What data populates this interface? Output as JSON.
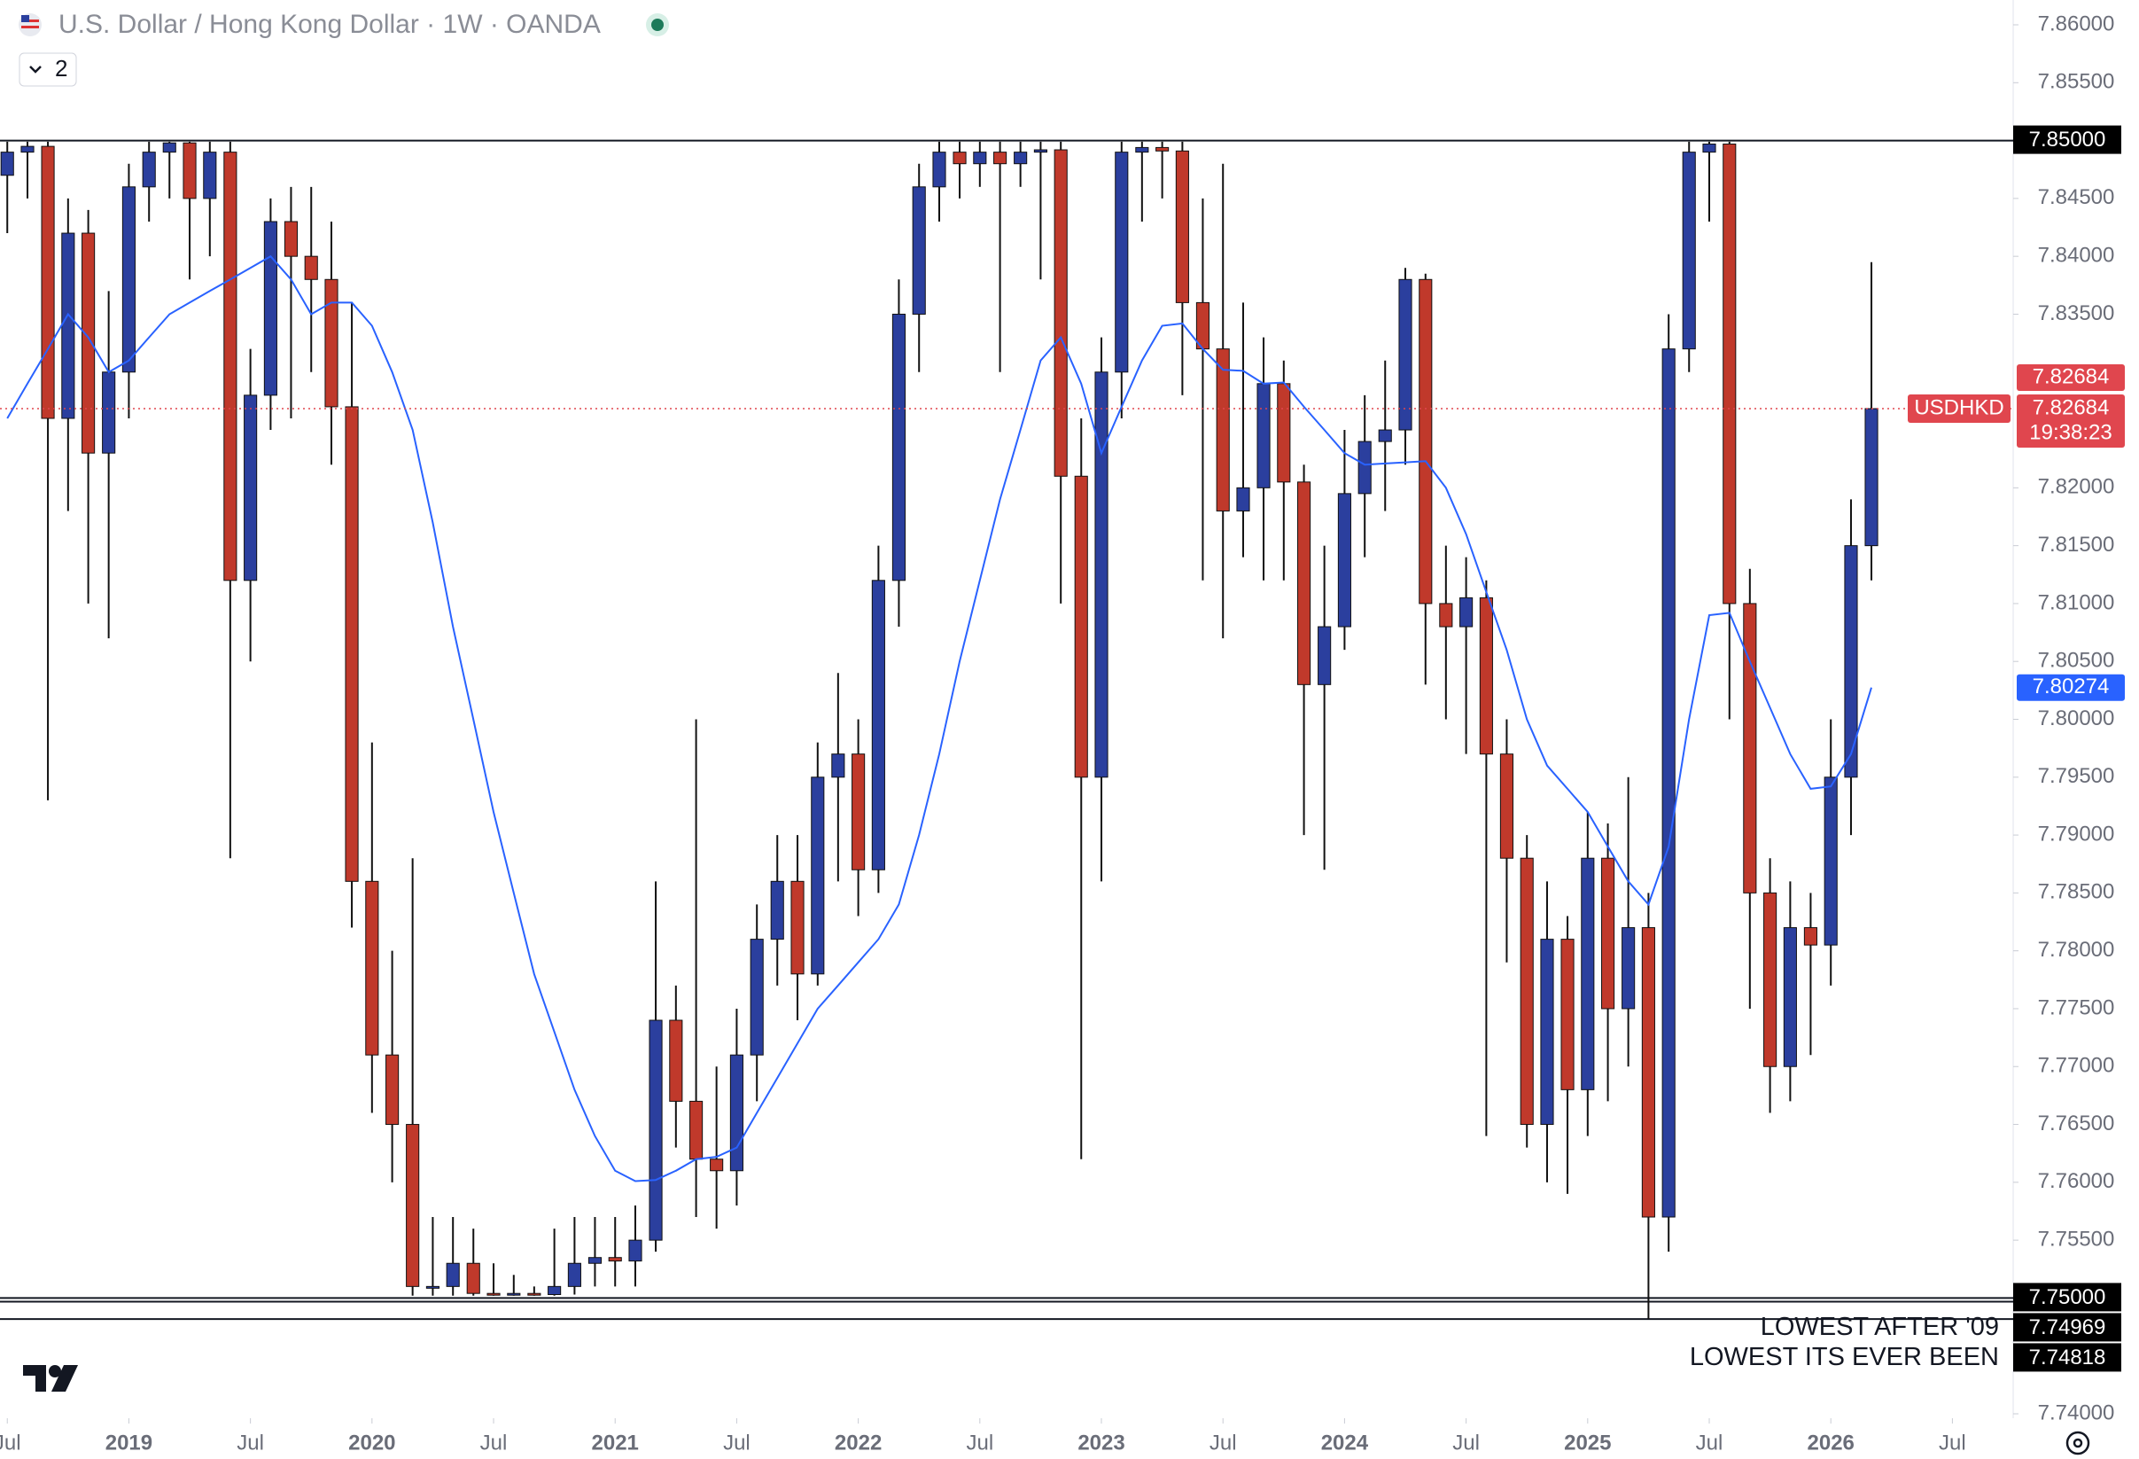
{
  "header": {
    "collapsed_count": 2
  },
  "chart_data": {
    "type": "candlestick",
    "title": "U.S. Dollar / Hong Kong Dollar · 1W · OANDA",
    "symbol": "USDHKD",
    "countdown": "19:38:23",
    "up_color": "#2b3f9e",
    "down_color": "#c0392b",
    "wick_color": "#111111",
    "ma_color": "#2962ff",
    "last_color": "#e0464e",
    "xlim": [
      2018.47,
      2026.75
    ],
    "xticks": [
      {
        "value": 2018.5,
        "label": "Jul"
      },
      {
        "value": 2019,
        "label": "2019"
      },
      {
        "value": 2019.5,
        "label": "Jul"
      },
      {
        "value": 2020,
        "label": "2020"
      },
      {
        "value": 2020.5,
        "label": "Jul"
      },
      {
        "value": 2021,
        "label": "2021"
      },
      {
        "value": 2021.5,
        "label": "Jul"
      },
      {
        "value": 2022,
        "label": "2022"
      },
      {
        "value": 2022.5,
        "label": "Jul"
      },
      {
        "value": 2023,
        "label": "2023"
      },
      {
        "value": 2023.5,
        "label": "Jul"
      },
      {
        "value": 2024,
        "label": "2024"
      },
      {
        "value": 2024.5,
        "label": "Jul"
      },
      {
        "value": 2025,
        "label": "2025"
      },
      {
        "value": 2025.5,
        "label": "Jul"
      },
      {
        "value": 2026,
        "label": "2026"
      },
      {
        "value": 2026.5,
        "label": "Jul"
      }
    ],
    "ylim": [
      7.74,
      7.86
    ],
    "yticks": [
      {
        "value": 7.86,
        "label": "7.86000"
      },
      {
        "value": 7.855,
        "label": "7.85500"
      },
      {
        "value": 7.845,
        "label": "7.84500"
      },
      {
        "value": 7.84,
        "label": "7.84000"
      },
      {
        "value": 7.835,
        "label": "7.83500"
      },
      {
        "value": 7.82,
        "label": "7.82000"
      },
      {
        "value": 7.815,
        "label": "7.81500"
      },
      {
        "value": 7.81,
        "label": "7.81000"
      },
      {
        "value": 7.805,
        "label": "7.80500"
      },
      {
        "value": 7.8,
        "label": "7.80000"
      },
      {
        "value": 7.795,
        "label": "7.79500"
      },
      {
        "value": 7.79,
        "label": "7.79000"
      },
      {
        "value": 7.785,
        "label": "7.78500"
      },
      {
        "value": 7.78,
        "label": "7.78000"
      },
      {
        "value": 7.775,
        "label": "7.77500"
      },
      {
        "value": 7.77,
        "label": "7.77000"
      },
      {
        "value": 7.765,
        "label": "7.76500"
      },
      {
        "value": 7.76,
        "label": "7.76000"
      },
      {
        "value": 7.755,
        "label": "7.75500"
      },
      {
        "value": 7.74,
        "label": "7.74000"
      }
    ],
    "hlines": [
      {
        "value": 7.85,
        "label": "7.85000"
      },
      {
        "value": 7.75,
        "label": "7.75000"
      },
      {
        "value": 7.74969,
        "label": "7.74969",
        "note": "LOWEST AFTER '09"
      },
      {
        "value": 7.74818,
        "label": "7.74818",
        "note": "LOWEST ITS EVER BEEN"
      }
    ],
    "x": [
      2018.5,
      2018.583,
      2018.667,
      2018.75,
      2018.833,
      2018.917,
      2019,
      2019.083,
      2019.167,
      2019.25,
      2019.333,
      2019.417,
      2019.5,
      2019.583,
      2019.667,
      2019.75,
      2019.833,
      2019.917,
      2020,
      2020.083,
      2020.167,
      2020.25,
      2020.333,
      2020.417,
      2020.5,
      2020.583,
      2020.667,
      2020.75,
      2020.833,
      2020.917,
      2021,
      2021.083,
      2021.167,
      2021.25,
      2021.333,
      2021.417,
      2021.5,
      2021.583,
      2021.667,
      2021.75,
      2021.833,
      2021.917,
      2022,
      2022.083,
      2022.167,
      2022.25,
      2022.333,
      2022.417,
      2022.5,
      2022.583,
      2022.667,
      2022.75,
      2022.833,
      2022.917,
      2023,
      2023.083,
      2023.167,
      2023.25,
      2023.333,
      2023.417,
      2023.5,
      2023.583,
      2023.667,
      2023.75,
      2023.833,
      2023.917,
      2024,
      2024.083,
      2024.167,
      2024.25,
      2024.333,
      2024.417,
      2024.5,
      2024.583,
      2024.667,
      2024.75,
      2024.833,
      2024.917,
      2025,
      2025.083,
      2025.167,
      2025.25,
      2025.333,
      2025.417,
      2025.5,
      2025.583,
      2025.667,
      2025.75,
      2025.833,
      2025.917,
      2026,
      2026.083,
      2026.167
    ],
    "series": [
      {
        "name": "USDHKD",
        "values": [
          [
            7.847,
            7.8499,
            7.842,
            7.849
          ],
          [
            7.849,
            7.8499,
            7.845,
            7.8495
          ],
          [
            7.8495,
            7.8499,
            7.793,
            7.826
          ],
          [
            7.826,
            7.845,
            7.818,
            7.842
          ],
          [
            7.842,
            7.844,
            7.81,
            7.823
          ],
          [
            7.823,
            7.837,
            7.807,
            7.83
          ],
          [
            7.83,
            7.848,
            7.826,
            7.846
          ],
          [
            7.846,
            7.8499,
            7.843,
            7.849
          ],
          [
            7.849,
            7.8499,
            7.845,
            7.8498
          ],
          [
            7.8498,
            7.8499,
            7.838,
            7.845
          ],
          [
            7.845,
            7.8499,
            7.84,
            7.849
          ],
          [
            7.849,
            7.8499,
            7.788,
            7.812
          ],
          [
            7.812,
            7.832,
            7.805,
            7.828
          ],
          [
            7.828,
            7.845,
            7.825,
            7.843
          ],
          [
            7.843,
            7.846,
            7.826,
            7.84
          ],
          [
            7.84,
            7.846,
            7.83,
            7.838
          ],
          [
            7.838,
            7.843,
            7.822,
            7.827
          ],
          [
            7.827,
            7.836,
            7.782,
            7.786
          ],
          [
            7.786,
            7.798,
            7.766,
            7.771
          ],
          [
            7.771,
            7.78,
            7.76,
            7.765
          ],
          [
            7.765,
            7.788,
            7.7502,
            7.751
          ],
          [
            7.751,
            7.757,
            7.7502,
            7.751
          ],
          [
            7.751,
            7.757,
            7.7502,
            7.753
          ],
          [
            7.753,
            7.756,
            7.7502,
            7.7504
          ],
          [
            7.7504,
            7.753,
            7.7502,
            7.7503
          ],
          [
            7.7503,
            7.752,
            7.7502,
            7.7504
          ],
          [
            7.7504,
            7.751,
            7.7502,
            7.7503
          ],
          [
            7.7503,
            7.756,
            7.7502,
            7.751
          ],
          [
            7.751,
            7.757,
            7.7503,
            7.753
          ],
          [
            7.753,
            7.757,
            7.751,
            7.7535
          ],
          [
            7.7535,
            7.757,
            7.751,
            7.7532
          ],
          [
            7.7532,
            7.758,
            7.751,
            7.755
          ],
          [
            7.755,
            7.786,
            7.754,
            7.774
          ],
          [
            7.774,
            7.777,
            7.763,
            7.767
          ],
          [
            7.767,
            7.8,
            7.757,
            7.762
          ],
          [
            7.762,
            7.77,
            7.756,
            7.761
          ],
          [
            7.761,
            7.775,
            7.758,
            7.771
          ],
          [
            7.771,
            7.784,
            7.767,
            7.781
          ],
          [
            7.781,
            7.79,
            7.777,
            7.786
          ],
          [
            7.786,
            7.79,
            7.774,
            7.778
          ],
          [
            7.778,
            7.798,
            7.777,
            7.795
          ],
          [
            7.795,
            7.804,
            7.786,
            7.797
          ],
          [
            7.797,
            7.8,
            7.783,
            7.787
          ],
          [
            7.787,
            7.815,
            7.785,
            7.812
          ],
          [
            7.812,
            7.838,
            7.808,
            7.835
          ],
          [
            7.835,
            7.848,
            7.83,
            7.846
          ],
          [
            7.846,
            7.8499,
            7.843,
            7.849
          ],
          [
            7.849,
            7.8499,
            7.845,
            7.848
          ],
          [
            7.848,
            7.8499,
            7.846,
            7.849
          ],
          [
            7.849,
            7.8499,
            7.83,
            7.848
          ],
          [
            7.848,
            7.8499,
            7.846,
            7.849
          ],
          [
            7.849,
            7.8499,
            7.838,
            7.8492
          ],
          [
            7.8492,
            7.8499,
            7.81,
            7.821
          ],
          [
            7.821,
            7.826,
            7.762,
            7.795
          ],
          [
            7.795,
            7.833,
            7.786,
            7.83
          ],
          [
            7.83,
            7.8499,
            7.826,
            7.849
          ],
          [
            7.849,
            7.8499,
            7.843,
            7.8494
          ],
          [
            7.8494,
            7.8499,
            7.845,
            7.8491
          ],
          [
            7.8491,
            7.8499,
            7.828,
            7.836
          ],
          [
            7.836,
            7.845,
            7.812,
            7.832
          ],
          [
            7.832,
            7.848,
            7.807,
            7.818
          ],
          [
            7.818,
            7.836,
            7.814,
            7.82
          ],
          [
            7.82,
            7.833,
            7.812,
            7.829
          ],
          [
            7.829,
            7.831,
            7.812,
            7.8205
          ],
          [
            7.8205,
            7.822,
            7.79,
            7.803
          ],
          [
            7.803,
            7.815,
            7.787,
            7.808
          ],
          [
            7.808,
            7.825,
            7.806,
            7.8195
          ],
          [
            7.8195,
            7.828,
            7.814,
            7.824
          ],
          [
            7.824,
            7.831,
            7.818,
            7.825
          ],
          [
            7.825,
            7.839,
            7.822,
            7.838
          ],
          [
            7.838,
            7.8385,
            7.803,
            7.81
          ],
          [
            7.81,
            7.815,
            7.8,
            7.808
          ],
          [
            7.808,
            7.814,
            7.797,
            7.8105
          ],
          [
            7.8105,
            7.812,
            7.764,
            7.797
          ],
          [
            7.797,
            7.8,
            7.779,
            7.788
          ],
          [
            7.788,
            7.79,
            7.763,
            7.765
          ],
          [
            7.765,
            7.786,
            7.76,
            7.781
          ],
          [
            7.781,
            7.783,
            7.759,
            7.768
          ],
          [
            7.768,
            7.792,
            7.764,
            7.788
          ],
          [
            7.788,
            7.791,
            7.767,
            7.775
          ],
          [
            7.775,
            7.795,
            7.77,
            7.782
          ],
          [
            7.782,
            7.785,
            7.74818,
            7.757
          ],
          [
            7.757,
            7.835,
            7.754,
            7.832
          ],
          [
            7.832,
            7.8499,
            7.83,
            7.849
          ],
          [
            7.849,
            7.8499,
            7.843,
            7.8497
          ],
          [
            7.8497,
            7.8499,
            7.8,
            7.81
          ],
          [
            7.81,
            7.813,
            7.775,
            7.785
          ],
          [
            7.785,
            7.788,
            7.766,
            7.77
          ],
          [
            7.77,
            7.786,
            7.767,
            7.782
          ],
          [
            7.782,
            7.785,
            7.771,
            7.7805
          ],
          [
            7.7805,
            7.8,
            7.777,
            7.795
          ],
          [
            7.795,
            7.819,
            7.79,
            7.815
          ],
          [
            7.815,
            7.8395,
            7.812,
            7.82684
          ]
        ]
      }
    ],
    "ma": {
      "values": [
        7.826,
        7.829,
        7.832,
        7.835,
        7.833,
        7.83,
        7.831,
        7.833,
        7.835,
        7.836,
        7.837,
        7.838,
        7.839,
        7.84,
        7.838,
        7.835,
        7.836,
        7.836,
        7.834,
        7.83,
        7.825,
        7.817,
        7.808,
        7.8,
        7.792,
        7.785,
        7.778,
        7.773,
        7.768,
        7.764,
        7.761,
        7.7601,
        7.7602,
        7.761,
        7.762,
        7.7622,
        7.763,
        7.766,
        7.769,
        7.772,
        7.775,
        7.777,
        7.779,
        7.781,
        7.784,
        7.79,
        7.797,
        7.805,
        7.812,
        7.819,
        7.825,
        7.831,
        7.833,
        7.829,
        7.823,
        7.827,
        7.831,
        7.834,
        7.8342,
        7.832,
        7.8302,
        7.8301,
        7.829,
        7.8291,
        7.827,
        7.825,
        7.823,
        7.822,
        7.8221,
        7.8222,
        7.8223,
        7.82,
        7.816,
        7.811,
        7.806,
        7.8,
        7.796,
        7.794,
        7.792,
        7.789,
        7.786,
        7.784,
        7.789,
        7.8,
        7.809,
        7.8092,
        7.805,
        7.801,
        7.797,
        7.794,
        7.7942,
        7.797,
        7.80274
      ]
    }
  }
}
